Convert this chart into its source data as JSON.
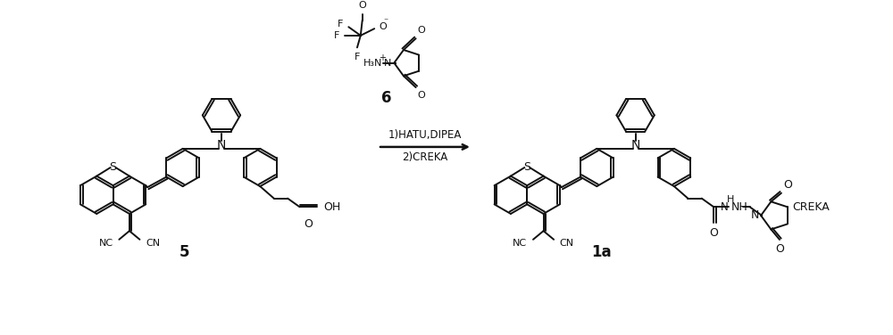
{
  "bg": "#ffffff",
  "lw": 1.4,
  "R": 22,
  "c": "#111111",
  "compound5_label": "5",
  "compound6_label": "6",
  "compound1a_label": "1a",
  "arrow_text1": "1)HATU,DIPEA",
  "arrow_text2": "2)CREKA",
  "creka": "CREKA"
}
